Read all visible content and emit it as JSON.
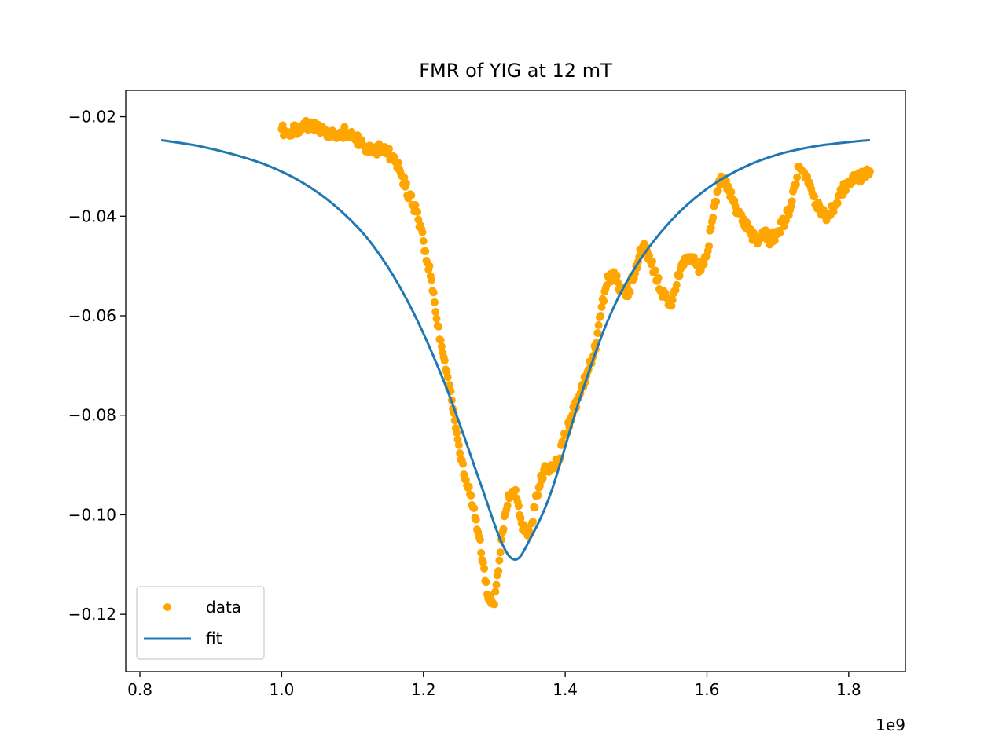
{
  "chart_data": {
    "type": "scatter",
    "title": "FMR of YIG at 12 mT",
    "xlabel": "",
    "ylabel": "",
    "x_offset_label": "1e9",
    "xlim": [
      0.78,
      1.88
    ],
    "ylim": [
      -0.1315,
      -0.0147
    ],
    "x_ticks": [
      {
        "value": 0.8,
        "label": "0.8"
      },
      {
        "value": 1.0,
        "label": "1.0"
      },
      {
        "value": 1.2,
        "label": "1.2"
      },
      {
        "value": 1.4,
        "label": "1.4"
      },
      {
        "value": 1.6,
        "label": "1.6"
      },
      {
        "value": 1.8,
        "label": "1.8"
      }
    ],
    "y_ticks": [
      {
        "value": -0.02,
        "label": "−0.02"
      },
      {
        "value": -0.04,
        "label": "−0.04"
      },
      {
        "value": -0.06,
        "label": "−0.06"
      },
      {
        "value": -0.08,
        "label": "−0.08"
      },
      {
        "value": -0.1,
        "label": "−0.10"
      },
      {
        "value": -0.12,
        "label": "−0.12"
      }
    ],
    "grid": false,
    "legend": {
      "position": "lower-left",
      "entries": [
        {
          "label": "data",
          "marker": "dot",
          "color": "#ffa500"
        },
        {
          "label": "fit",
          "marker": "line",
          "color": "#1f77b4"
        }
      ]
    },
    "series": [
      {
        "name": "data",
        "kind": "scatter",
        "color": "#ffa500",
        "points": [
          [
            1.0,
            -0.0225
          ],
          [
            1.01,
            -0.0235
          ],
          [
            1.02,
            -0.0225
          ],
          [
            1.03,
            -0.022
          ],
          [
            1.04,
            -0.0215
          ],
          [
            1.05,
            -0.0225
          ],
          [
            1.06,
            -0.023
          ],
          [
            1.07,
            -0.0235
          ],
          [
            1.08,
            -0.024
          ],
          [
            1.09,
            -0.023
          ],
          [
            1.1,
            -0.024
          ],
          [
            1.11,
            -0.025
          ],
          [
            1.12,
            -0.0265
          ],
          [
            1.13,
            -0.027
          ],
          [
            1.14,
            -0.026
          ],
          [
            1.15,
            -0.027
          ],
          [
            1.16,
            -0.029
          ],
          [
            1.17,
            -0.032
          ],
          [
            1.18,
            -0.036
          ],
          [
            1.19,
            -0.039
          ],
          [
            1.2,
            -0.045
          ],
          [
            1.21,
            -0.052
          ],
          [
            1.22,
            -0.062
          ],
          [
            1.23,
            -0.069
          ],
          [
            1.24,
            -0.077
          ],
          [
            1.25,
            -0.086
          ],
          [
            1.26,
            -0.093
          ],
          [
            1.27,
            -0.0985
          ],
          [
            1.28,
            -0.105
          ],
          [
            1.29,
            -0.116
          ],
          [
            1.3,
            -0.118
          ],
          [
            1.31,
            -0.105
          ],
          [
            1.32,
            -0.096
          ],
          [
            1.33,
            -0.095
          ],
          [
            1.34,
            -0.103
          ],
          [
            1.35,
            -0.104
          ],
          [
            1.36,
            -0.096
          ],
          [
            1.37,
            -0.091
          ],
          [
            1.38,
            -0.09
          ],
          [
            1.39,
            -0.089
          ],
          [
            1.4,
            -0.084
          ],
          [
            1.41,
            -0.08
          ],
          [
            1.42,
            -0.076
          ],
          [
            1.43,
            -0.072
          ],
          [
            1.44,
            -0.068
          ],
          [
            1.45,
            -0.06
          ],
          [
            1.46,
            -0.052
          ],
          [
            1.47,
            -0.052
          ],
          [
            1.48,
            -0.055
          ],
          [
            1.49,
            -0.055
          ],
          [
            1.5,
            -0.05
          ],
          [
            1.51,
            -0.046
          ],
          [
            1.52,
            -0.049
          ],
          [
            1.53,
            -0.053
          ],
          [
            1.54,
            -0.056
          ],
          [
            1.55,
            -0.058
          ],
          [
            1.56,
            -0.052
          ],
          [
            1.57,
            -0.049
          ],
          [
            1.58,
            -0.049
          ],
          [
            1.59,
            -0.051
          ],
          [
            1.6,
            -0.048
          ],
          [
            1.61,
            -0.038
          ],
          [
            1.62,
            -0.032
          ],
          [
            1.63,
            -0.034
          ],
          [
            1.64,
            -0.038
          ],
          [
            1.65,
            -0.041
          ],
          [
            1.66,
            -0.043
          ],
          [
            1.67,
            -0.045
          ],
          [
            1.68,
            -0.043
          ],
          [
            1.69,
            -0.045
          ],
          [
            1.7,
            -0.043
          ],
          [
            1.71,
            -0.041
          ],
          [
            1.72,
            -0.037
          ],
          [
            1.73,
            -0.03
          ],
          [
            1.74,
            -0.032
          ],
          [
            1.75,
            -0.036
          ],
          [
            1.76,
            -0.039
          ],
          [
            1.77,
            -0.04
          ],
          [
            1.78,
            -0.038
          ],
          [
            1.79,
            -0.035
          ],
          [
            1.8,
            -0.033
          ],
          [
            1.81,
            -0.032
          ],
          [
            1.82,
            -0.032
          ],
          [
            1.83,
            -0.031
          ]
        ]
      },
      {
        "name": "fit",
        "kind": "line",
        "color": "#1f77b4",
        "points": [
          [
            0.83,
            -0.0247
          ],
          [
            0.88,
            -0.0258
          ],
          [
            0.93,
            -0.0275
          ],
          [
            0.98,
            -0.0298
          ],
          [
            1.03,
            -0.0333
          ],
          [
            1.08,
            -0.0385
          ],
          [
            1.13,
            -0.0461
          ],
          [
            1.18,
            -0.0577
          ],
          [
            1.23,
            -0.0736
          ],
          [
            1.28,
            -0.0935
          ],
          [
            1.31,
            -0.1055
          ],
          [
            1.33,
            -0.109
          ],
          [
            1.35,
            -0.105
          ],
          [
            1.38,
            -0.0955
          ],
          [
            1.42,
            -0.077
          ],
          [
            1.46,
            -0.061
          ],
          [
            1.5,
            -0.05
          ],
          [
            1.55,
            -0.0408
          ],
          [
            1.6,
            -0.0345
          ],
          [
            1.65,
            -0.0303
          ],
          [
            1.7,
            -0.0276
          ],
          [
            1.75,
            -0.026
          ],
          [
            1.8,
            -0.0251
          ],
          [
            1.83,
            -0.0247
          ]
        ]
      }
    ]
  }
}
